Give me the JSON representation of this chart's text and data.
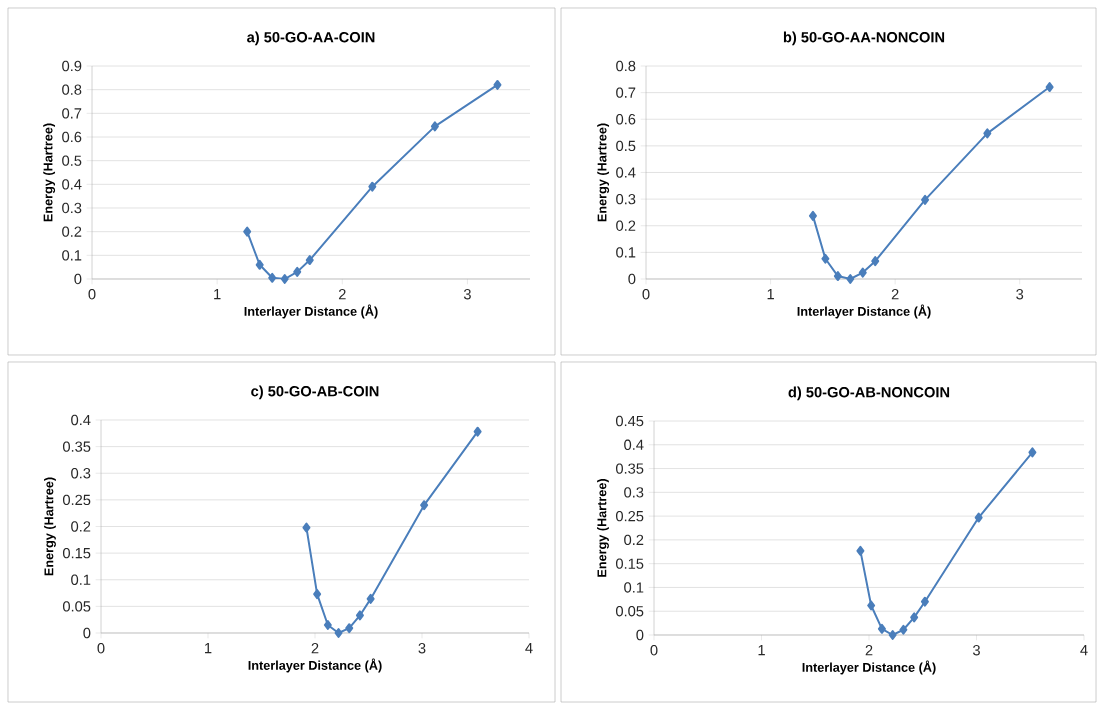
{
  "chart_data": [
    {
      "type": "line",
      "title": "a) 50-GO-AA-COIN",
      "xlabel": "Interlayer Distance (Å)",
      "ylabel": "Energy (Hartree)",
      "color": "#4a7ebb",
      "marker": "diamond",
      "grid": "y",
      "x": [
        1.24,
        1.34,
        1.44,
        1.54,
        1.64,
        1.74,
        2.24,
        2.74,
        3.24
      ],
      "values": [
        0.2,
        0.06,
        0.005,
        0,
        0.03,
        0.08,
        0.39,
        0.645,
        0.82
      ],
      "xlim": [
        0,
        3.5
      ],
      "xticks": [
        0,
        1,
        2,
        3
      ],
      "ylim": [
        0,
        0.9
      ],
      "yticks": [
        0,
        0.1,
        0.2,
        0.3,
        0.4,
        0.5,
        0.6,
        0.7,
        0.8,
        0.9
      ]
    },
    {
      "type": "line",
      "title": "b) 50-GO-AA-NONCOIN",
      "xlabel": "Interlayer Distance (Å)",
      "ylabel": "Energy (Hartree)",
      "color": "#4a7ebb",
      "marker": "diamond",
      "grid": "y",
      "x": [
        1.34,
        1.44,
        1.54,
        1.64,
        1.74,
        1.84,
        2.24,
        2.74,
        3.24
      ],
      "values": [
        0.237,
        0.076,
        0.011,
        0,
        0.024,
        0.067,
        0.297,
        0.547,
        0.721
      ],
      "xlim": [
        0,
        3.5
      ],
      "xticks": [
        0,
        1,
        2,
        3
      ],
      "ylim": [
        0,
        0.8
      ],
      "yticks": [
        0,
        0.1,
        0.2,
        0.3,
        0.4,
        0.5,
        0.6,
        0.7,
        0.8
      ]
    },
    {
      "type": "line",
      "title": "c) 50-GO-AB-COIN",
      "xlabel": "Interlayer Distance (Å)",
      "ylabel": "Energy (Hartree)",
      "color": "#4a7ebb",
      "marker": "diamond",
      "grid": "y",
      "x": [
        1.92,
        2.02,
        2.12,
        2.22,
        2.32,
        2.42,
        2.52,
        3.02,
        3.52
      ],
      "values": [
        0.198,
        0.073,
        0.015,
        0,
        0.009,
        0.033,
        0.064,
        0.24,
        0.378
      ],
      "xlim": [
        0,
        4
      ],
      "xticks": [
        0,
        1,
        2,
        3,
        4
      ],
      "ylim": [
        0,
        0.4
      ],
      "yticks": [
        0,
        0.05,
        0.1,
        0.15,
        0.2,
        0.25,
        0.3,
        0.35,
        0.4
      ]
    },
    {
      "type": "line",
      "title": "d) 50-GO-AB-NONCOIN",
      "xlabel": "Interlayer Distance (Å)",
      "ylabel": "Energy (Hartree)",
      "color": "#4a7ebb",
      "marker": "diamond",
      "grid": "y",
      "x": [
        1.92,
        2.02,
        2.12,
        2.22,
        2.32,
        2.42,
        2.52,
        3.02,
        3.52
      ],
      "values": [
        0.177,
        0.062,
        0.013,
        0,
        0.011,
        0.037,
        0.07,
        0.247,
        0.384
      ],
      "xlim": [
        0,
        4
      ],
      "xticks": [
        0,
        1,
        2,
        3,
        4
      ],
      "ylim": [
        0,
        0.45
      ],
      "yticks": [
        0,
        0.05,
        0.1,
        0.15,
        0.2,
        0.25,
        0.3,
        0.35,
        0.4,
        0.45
      ]
    }
  ]
}
